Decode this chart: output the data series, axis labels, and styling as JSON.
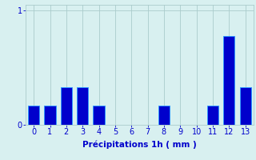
{
  "categories": [
    0,
    1,
    2,
    3,
    4,
    5,
    6,
    7,
    8,
    9,
    10,
    11,
    12,
    13
  ],
  "values": [
    0.17,
    0.17,
    0.33,
    0.33,
    0.17,
    0.0,
    0.0,
    0.0,
    0.17,
    0.0,
    0.0,
    0.17,
    0.78,
    0.33
  ],
  "bar_color": "#0000cc",
  "bar_edge_color": "#3399ff",
  "background_color": "#d8f0f0",
  "grid_color": "#aacccc",
  "text_color": "#0000cc",
  "xlabel": "Précipitations 1h ( mm )",
  "ylim": [
    0,
    1.05
  ],
  "yticks": [
    0,
    1
  ],
  "xlim": [
    -0.5,
    13.5
  ],
  "label_fontsize": 7.5,
  "tick_fontsize": 7
}
